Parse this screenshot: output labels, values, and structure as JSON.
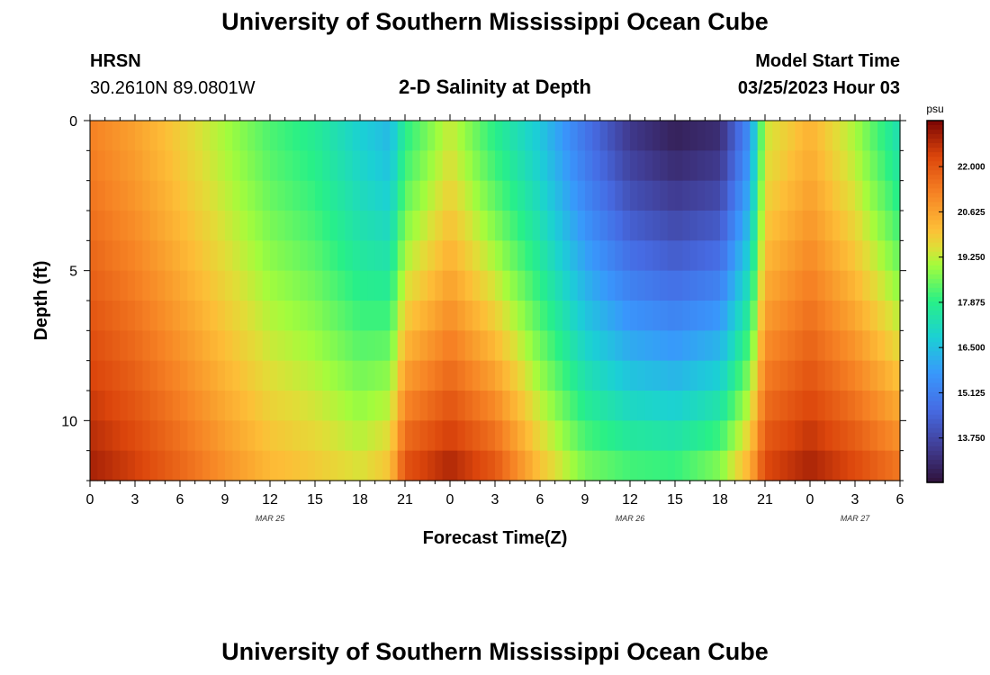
{
  "page": {
    "title_top": "University of Southern Mississippi Ocean Cube",
    "title_bottom": "University of Southern Mississippi Ocean Cube",
    "station_name": "HRSN",
    "station_coords": "30.2610N  89.0801W",
    "plot_title": "2-D Salinity at Depth",
    "model_label": "Model Start Time",
    "model_start": "03/25/2023 Hour 03"
  },
  "chart_data": {
    "type": "heatmap",
    "title": "2-D Salinity at Depth",
    "xlabel": "Forecast Time(Z)",
    "ylabel": "Depth (ft)",
    "x_hours": [
      0,
      54
    ],
    "xticks": [
      "0",
      "3",
      "6",
      "9",
      "12",
      "15",
      "18",
      "21",
      "0",
      "3",
      "6",
      "9",
      "12",
      "15",
      "18",
      "21",
      "0",
      "3",
      "6"
    ],
    "x_dates": [
      {
        "label": "MAR 25",
        "hour": 12
      },
      {
        "label": "MAR 26",
        "hour": 36
      },
      {
        "label": "MAR 27",
        "hour": 51
      }
    ],
    "ylim": [
      0,
      12
    ],
    "yticks": [
      0,
      5,
      10
    ],
    "colorbar": {
      "unit": "psu",
      "min": 12.4,
      "max": 23.4,
      "ticks": [
        "22.000",
        "20.625",
        "19.250",
        "17.875",
        "16.500",
        "15.125",
        "13.750"
      ]
    },
    "depth_levels_ft": [
      0.5,
      1.5,
      2.5,
      3.5,
      4.5,
      5.5,
      6.5,
      7.5,
      8.5,
      9.5,
      10.5,
      11.5
    ],
    "keyframes": [
      {
        "t": 0,
        "surface": 21.2,
        "bottom": 23.0
      },
      {
        "t": 3,
        "surface": 20.6,
        "bottom": 22.5
      },
      {
        "t": 6,
        "surface": 19.8,
        "bottom": 21.8
      },
      {
        "t": 9,
        "surface": 19.0,
        "bottom": 21.0
      },
      {
        "t": 12,
        "surface": 18.2,
        "bottom": 20.3
      },
      {
        "t": 15,
        "surface": 17.7,
        "bottom": 20.0
      },
      {
        "t": 18,
        "surface": 16.8,
        "bottom": 19.6
      },
      {
        "t": 20,
        "surface": 16.3,
        "bottom": 20.2
      },
      {
        "t": 21,
        "surface": 17.8,
        "bottom": 22.3
      },
      {
        "t": 24,
        "surface": 19.3,
        "bottom": 23.0
      },
      {
        "t": 27,
        "surface": 17.8,
        "bottom": 22.2
      },
      {
        "t": 30,
        "surface": 16.6,
        "bottom": 20.2
      },
      {
        "t": 33,
        "surface": 14.8,
        "bottom": 18.8
      },
      {
        "t": 36,
        "surface": 13.3,
        "bottom": 18.4
      },
      {
        "t": 39,
        "surface": 12.7,
        "bottom": 18.3
      },
      {
        "t": 42,
        "surface": 13.0,
        "bottom": 19.0
      },
      {
        "t": 44,
        "surface": 15.5,
        "bottom": 20.6
      },
      {
        "t": 45,
        "surface": 19.3,
        "bottom": 22.4
      },
      {
        "t": 48,
        "surface": 20.3,
        "bottom": 23.0
      },
      {
        "t": 51,
        "surface": 19.0,
        "bottom": 22.4
      },
      {
        "t": 54,
        "surface": 17.2,
        "bottom": 21.6
      }
    ],
    "grid": false,
    "legend": "colorbar-right"
  }
}
